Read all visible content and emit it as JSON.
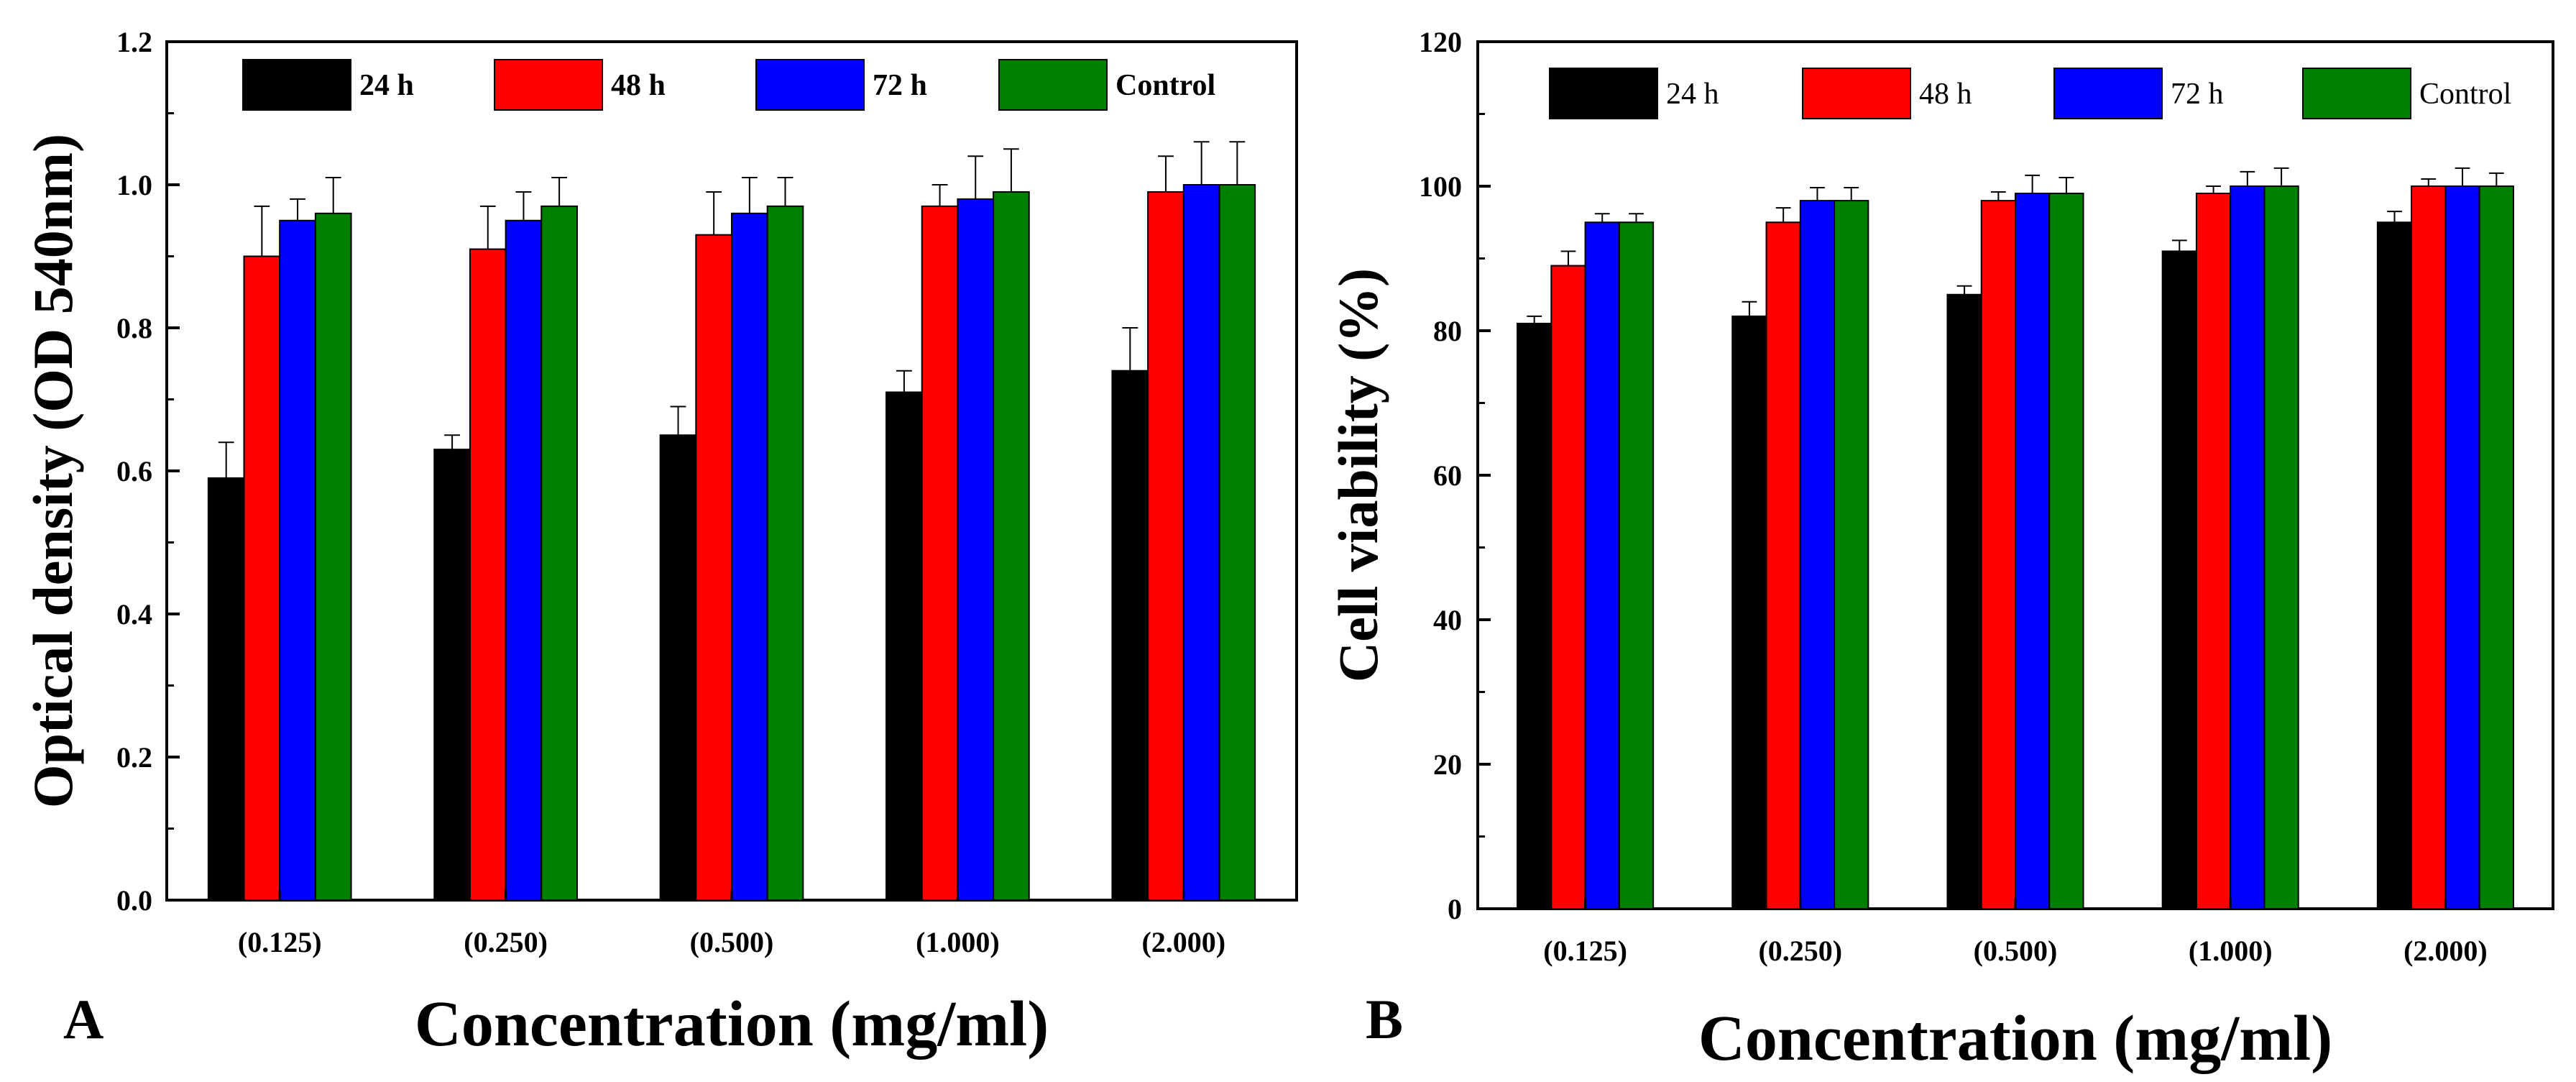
{
  "colors": {
    "24h": "#000000",
    "48h": "#ff0000",
    "72h": "#0000ff",
    "control": "#008000"
  },
  "chart_data": [
    {
      "type": "bar",
      "panel_label": "A",
      "xlabel": "Concentration (mg/ml)",
      "ylabel": "Optical density (OD 540nm)",
      "ylim": [
        0,
        1.2
      ],
      "yticks": [
        "0.0",
        "0.2",
        "0.4",
        "0.6",
        "0.8",
        "1.0",
        "1.2"
      ],
      "categories": [
        "(0.125)",
        "(0.250)",
        "(0.500)",
        "(1.000)",
        "(2.000)"
      ],
      "legend_position": "top",
      "series": [
        {
          "name": "24 h",
          "color_key": "24h",
          "values": [
            0.59,
            0.63,
            0.65,
            0.71,
            0.74
          ],
          "errors": [
            0.05,
            0.02,
            0.04,
            0.03,
            0.06
          ]
        },
        {
          "name": "48 h",
          "color_key": "48h",
          "values": [
            0.9,
            0.91,
            0.93,
            0.97,
            0.99
          ],
          "errors": [
            0.07,
            0.06,
            0.06,
            0.03,
            0.05
          ]
        },
        {
          "name": "72 h",
          "color_key": "72h",
          "values": [
            0.95,
            0.95,
            0.96,
            0.98,
            1.0
          ],
          "errors": [
            0.03,
            0.04,
            0.05,
            0.06,
            0.06
          ]
        },
        {
          "name": "Control",
          "color_key": "control",
          "values": [
            0.96,
            0.97,
            0.97,
            0.99,
            1.0
          ],
          "errors": [
            0.05,
            0.04,
            0.04,
            0.06,
            0.06
          ]
        }
      ]
    },
    {
      "type": "bar",
      "panel_label": "B",
      "xlabel": "Concentration (mg/ml)",
      "ylabel": "Cell viability (%)",
      "ylim": [
        0,
        120
      ],
      "yticks": [
        "0",
        "20",
        "40",
        "60",
        "80",
        "100",
        "120"
      ],
      "categories": [
        "(0.125)",
        "(0.250)",
        "(0.500)",
        "(1.000)",
        "(2.000)"
      ],
      "legend_position": "top",
      "series": [
        {
          "name": "24 h",
          "color_key": "24h",
          "values": [
            81,
            82,
            85,
            91,
            95
          ],
          "errors": [
            1,
            2,
            1.2,
            1.5,
            1.5
          ]
        },
        {
          "name": "48 h",
          "color_key": "48h",
          "values": [
            89,
            95,
            98,
            99,
            100
          ],
          "errors": [
            2,
            2,
            1.2,
            1,
            1
          ]
        },
        {
          "name": "72 h",
          "color_key": "72h",
          "values": [
            95,
            98,
            99,
            100,
            100
          ],
          "errors": [
            1.2,
            1.8,
            2.5,
            2,
            2.5
          ]
        },
        {
          "name": "Control",
          "color_key": "control",
          "values": [
            95,
            98,
            99,
            100,
            100
          ],
          "errors": [
            1.2,
            1.8,
            2.2,
            2.5,
            1.8
          ]
        }
      ]
    }
  ]
}
